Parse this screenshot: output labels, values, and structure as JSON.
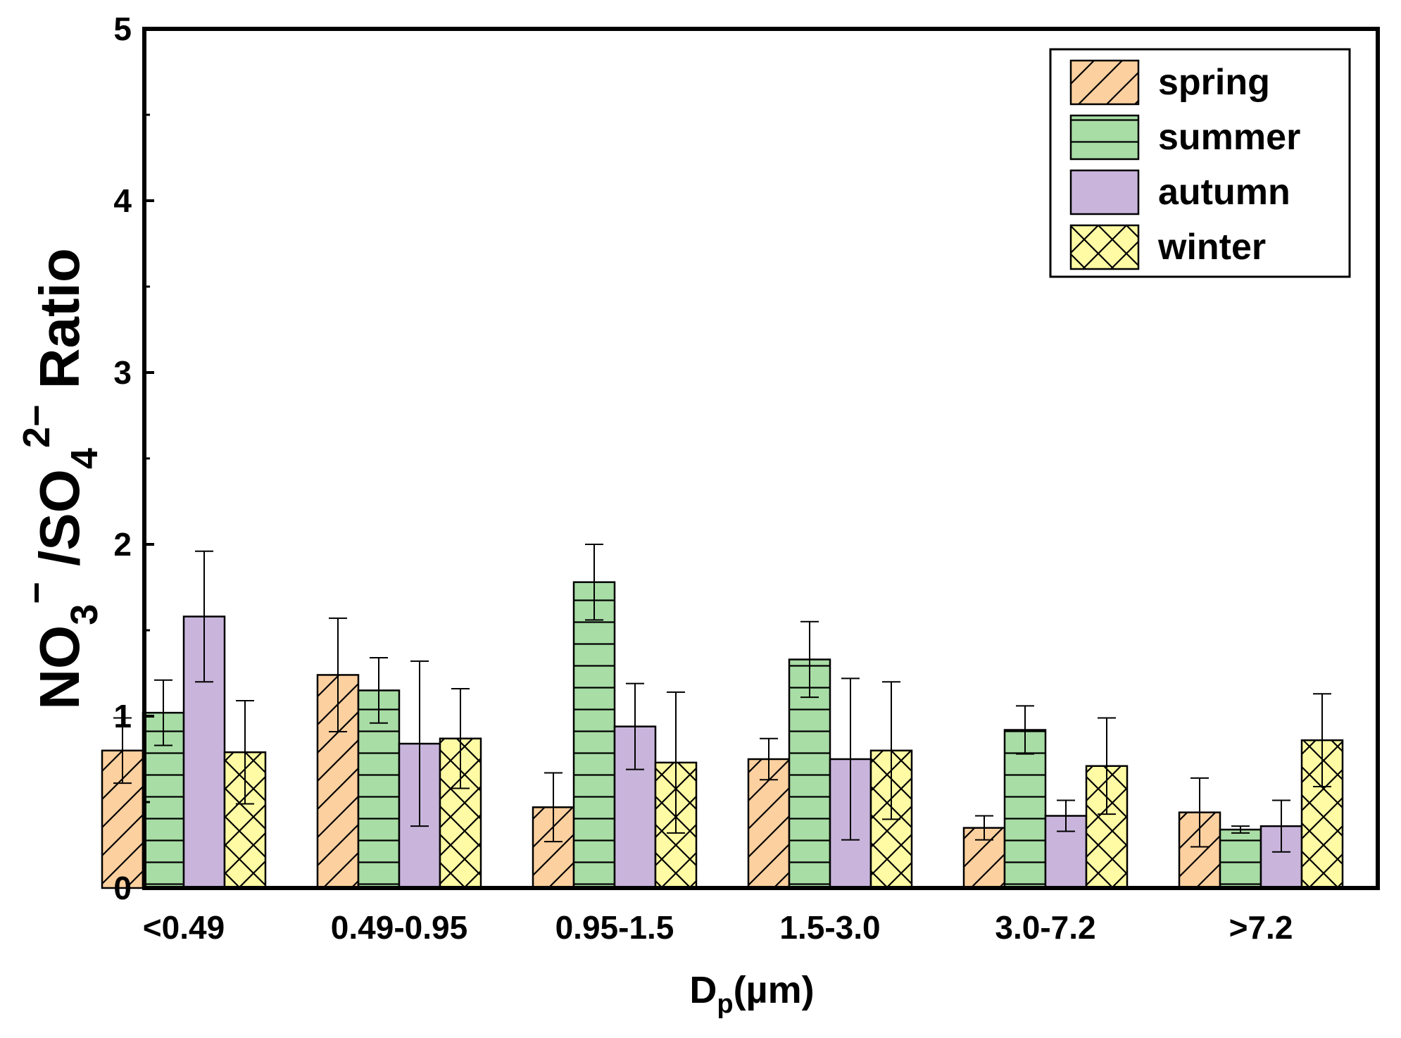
{
  "chart_data": {
    "type": "bar",
    "title": "",
    "xlabel": {
      "main": "D",
      "sub": "p",
      "tail": "(µm)"
    },
    "ylabel": {
      "p1": "NO",
      "sub1": "3",
      "sup1": "−",
      "p2": " /SO",
      "sub2": "4",
      "sup2": "2−",
      "p3": " Ratio"
    },
    "ylim": [
      0,
      5
    ],
    "yticks": [
      "0",
      "1",
      "2",
      "3",
      "4",
      "5"
    ],
    "categories": [
      "<0.49",
      "0.49-0.95",
      "0.95-1.5",
      "1.5-3.0",
      "3.0-7.2",
      ">7.2"
    ],
    "legend_position": "top-right",
    "series": [
      {
        "name": "spring",
        "color": "#FDD09F",
        "pattern": "diagonal",
        "values": [
          0.8,
          1.24,
          0.47,
          0.75,
          0.35,
          0.44
        ],
        "errors": [
          0.19,
          0.33,
          0.2,
          0.12,
          0.07,
          0.2
        ]
      },
      {
        "name": "summer",
        "color": "#A8DDA5",
        "pattern": "horizontal",
        "values": [
          1.02,
          1.15,
          1.78,
          1.33,
          0.92,
          0.34
        ],
        "errors": [
          0.19,
          0.19,
          0.22,
          0.22,
          0.14,
          0.02
        ]
      },
      {
        "name": "autumn",
        "color": "#C9B5DC",
        "pattern": "none",
        "values": [
          1.58,
          0.84,
          0.94,
          0.75,
          0.42,
          0.36
        ],
        "errors": [
          0.38,
          0.48,
          0.25,
          0.47,
          0.09,
          0.15
        ]
      },
      {
        "name": "winter",
        "color": "#FFFBA4",
        "pattern": "crosshatch",
        "values": [
          0.79,
          0.87,
          0.73,
          0.8,
          0.71,
          0.86
        ],
        "errors": [
          0.3,
          0.29,
          0.41,
          0.4,
          0.28,
          0.27
        ]
      }
    ]
  }
}
